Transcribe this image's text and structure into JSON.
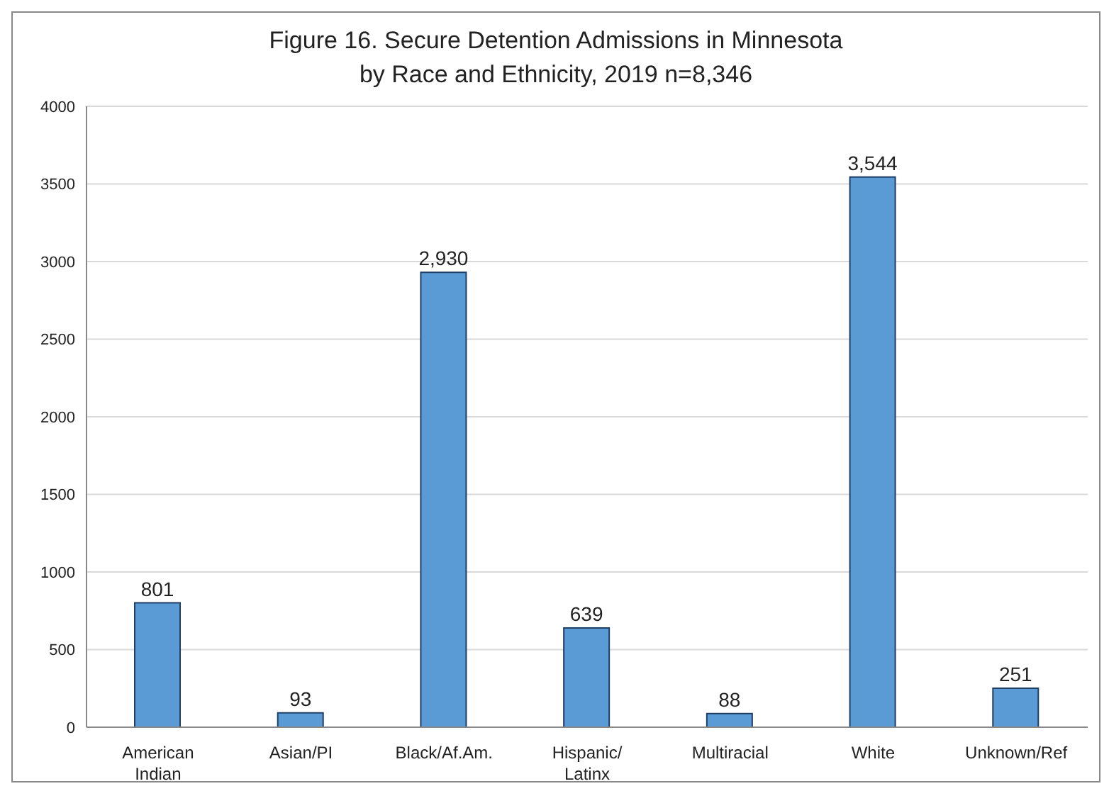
{
  "chart_data": {
    "type": "bar",
    "title": "Figure 16. Secure Detention Admissions in Minnesota\nby Race and Ethnicity, 2019 n=8,346",
    "categories": [
      "American Indian",
      "Asian/PI",
      "Black/Af.Am.",
      "Hispanic/Latinx",
      "Multiracial",
      "White",
      "Unknown/Ref"
    ],
    "values": [
      801,
      93,
      2930,
      639,
      88,
      3544,
      251
    ],
    "color": "#5b9bd5",
    "ylim": [
      0,
      4000
    ],
    "yticks": [
      0,
      500,
      1000,
      1500,
      2000,
      2500,
      3000,
      3500,
      4000
    ],
    "value_labels": [
      "801",
      "93",
      "2,930",
      "639",
      "88",
      "3,544",
      "251"
    ],
    "grid": "y"
  }
}
